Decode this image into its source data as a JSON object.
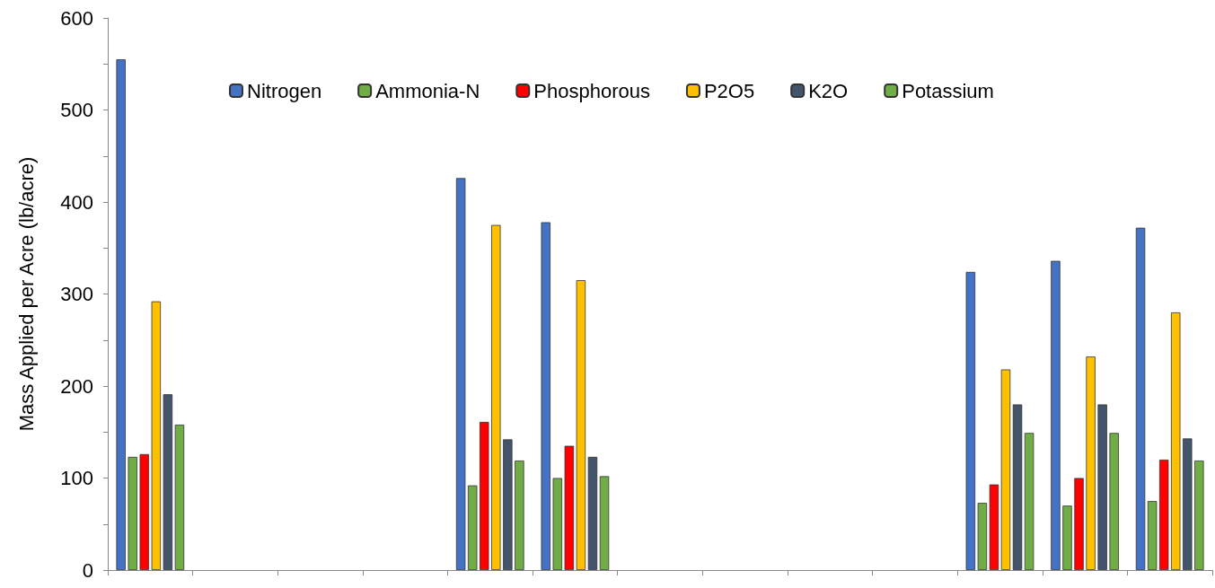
{
  "chart_data": {
    "type": "bar",
    "ylabel": "Mass Applied per Acre (lb/acre)",
    "categories": [
      null,
      null,
      null,
      null,
      null,
      null,
      null,
      null,
      null,
      null,
      null,
      null,
      null
    ],
    "series": [
      {
        "name": "Nitrogen",
        "color": "#4472c4",
        "values": [
          555,
          null,
          null,
          null,
          426,
          378,
          null,
          null,
          null,
          null,
          324,
          336,
          372
        ]
      },
      {
        "name": "Ammonia-N",
        "color": "#70ad47",
        "values": [
          123,
          null,
          null,
          null,
          92,
          100,
          null,
          null,
          null,
          null,
          73,
          70,
          75
        ]
      },
      {
        "name": "Phosphorous",
        "color": "#ff0000",
        "values": [
          126,
          null,
          null,
          null,
          161,
          135,
          null,
          null,
          null,
          null,
          93,
          100,
          120
        ]
      },
      {
        "name": "P2O5",
        "color": "#ffc000",
        "values": [
          292,
          null,
          null,
          null,
          375,
          315,
          null,
          null,
          null,
          null,
          218,
          232,
          280
        ]
      },
      {
        "name": "K2O",
        "color": "#44546a",
        "values": [
          191,
          null,
          null,
          null,
          142,
          123,
          null,
          null,
          null,
          null,
          180,
          180,
          143
        ]
      },
      {
        "name": "Potassium",
        "color": "#70ad47",
        "values": [
          158,
          null,
          null,
          null,
          119,
          102,
          null,
          null,
          null,
          null,
          149,
          149,
          119
        ]
      }
    ],
    "ylim": [
      0,
      600
    ],
    "yticks": [
      0,
      {
        "value": 50,
        "label": null
      },
      100,
      {
        "value": 150,
        "label": null
      },
      200,
      {
        "value": 250,
        "label": null
      },
      300,
      {
        "value": 350,
        "label": null
      },
      400,
      {
        "value": 450,
        "label": null
      },
      500,
      {
        "value": 550,
        "label": null
      },
      600
    ],
    "grid": false,
    "legend": "top"
  }
}
